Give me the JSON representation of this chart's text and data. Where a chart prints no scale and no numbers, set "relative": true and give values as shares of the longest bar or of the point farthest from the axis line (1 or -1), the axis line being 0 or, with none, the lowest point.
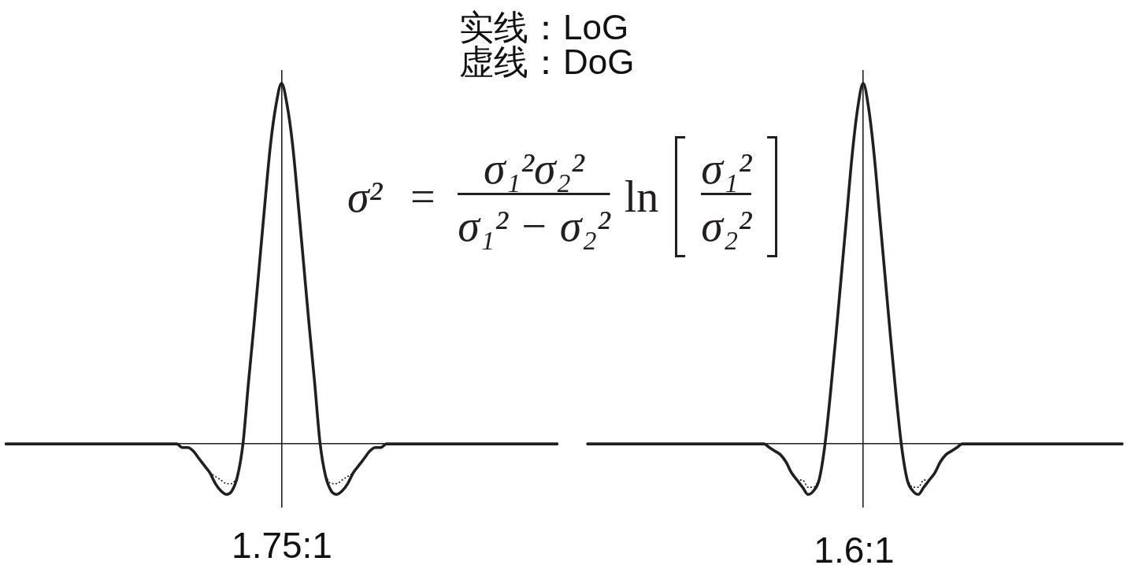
{
  "chart_data": [
    {
      "type": "line",
      "relative": true,
      "xlabel": "1.75:1",
      "annotations": [
        "实线：LoG",
        "虚线：DoG",
        "σ² =",
        "σ₁²σ₂²",
        "σ₁² − σ₂²",
        "ln",
        "σ₁²",
        "σ₂²"
      ],
      "categories": [
        null,
        null,
        null,
        null,
        null,
        null,
        null,
        null,
        null,
        null,
        null,
        null,
        null,
        null,
        null,
        null,
        null,
        null,
        null,
        null,
        null,
        null,
        null,
        null,
        null,
        null,
        null,
        null,
        null,
        null,
        null,
        null,
        null,
        null,
        null,
        null,
        null,
        null,
        null,
        null,
        null,
        null,
        null,
        null,
        null,
        null,
        null,
        null,
        null,
        null,
        null,
        null,
        null,
        null,
        null,
        null,
        null,
        null,
        null,
        null,
        null,
        null,
        null,
        null,
        null,
        null,
        null,
        null,
        null,
        null,
        null,
        null,
        null,
        null,
        null,
        null,
        null,
        null,
        null,
        null,
        null,
        null,
        null,
        null,
        null,
        null,
        null,
        null,
        null,
        null,
        null,
        null,
        null,
        null,
        null,
        null,
        null,
        null,
        null,
        null,
        null
      ],
      "series": [
        {
          "color": "#231f20",
          "line_style": "solid",
          "values": [
            0,
            0,
            0,
            0,
            0,
            0,
            0,
            0,
            0,
            0,
            0,
            0,
            0,
            0,
            0,
            0,
            0,
            0,
            0,
            0,
            0,
            0,
            0,
            0,
            0,
            0,
            0,
            0,
            0,
            0,
            0,
            0,
            -0.01,
            -0.01,
            -0.02,
            -0.04,
            -0.06,
            -0.08,
            -0.11,
            -0.13,
            -0.14,
            -0.13,
            -0.09,
            0,
            0.17,
            0.33,
            0.5,
            0.67,
            0.83,
            0.94,
            1,
            0.94,
            0.83,
            0.67,
            0.5,
            0.33,
            0.17,
            0,
            -0.09,
            -0.13,
            -0.14,
            -0.13,
            -0.11,
            -0.08,
            -0.06,
            -0.04,
            -0.02,
            -0.01,
            -0.01,
            0,
            0,
            0,
            0,
            0,
            0,
            0,
            0,
            0,
            0,
            0,
            0,
            0,
            0,
            0,
            0,
            0,
            0,
            0,
            0,
            0,
            0,
            0,
            0,
            0,
            0,
            0,
            0,
            0,
            0,
            0,
            0
          ]
        },
        {
          "color": "#231f20",
          "line_style": "dotted",
          "values": [
            null,
            null,
            null,
            null,
            null,
            null,
            null,
            null,
            null,
            null,
            null,
            null,
            null,
            null,
            null,
            null,
            null,
            null,
            null,
            null,
            null,
            null,
            null,
            null,
            null,
            null,
            null,
            null,
            null,
            null,
            null,
            null,
            null,
            null,
            null,
            null,
            null,
            -0.08,
            -0.09,
            -0.1,
            -0.11,
            -0.11,
            -0.09,
            null,
            null,
            null,
            null,
            null,
            null,
            null,
            null,
            null,
            null,
            null,
            null,
            null,
            null,
            null,
            -0.09,
            -0.11,
            -0.11,
            -0.1,
            -0.09,
            -0.08,
            null,
            null,
            null,
            null,
            null,
            null,
            null,
            null,
            null,
            null,
            null,
            null,
            null,
            null,
            null,
            null,
            null,
            null,
            null,
            null,
            null,
            null,
            null,
            null,
            null,
            null,
            null,
            null,
            null,
            null,
            null,
            null,
            null,
            null,
            null,
            null,
            null
          ]
        }
      ]
    },
    {
      "type": "line",
      "relative": true,
      "xlabel": "1.6:1",
      "categories": [
        null,
        null,
        null,
        null,
        null,
        null,
        null,
        null,
        null,
        null,
        null,
        null,
        null,
        null,
        null,
        null,
        null,
        null,
        null,
        null,
        null,
        null,
        null,
        null,
        null,
        null,
        null,
        null,
        null,
        null,
        null,
        null,
        null,
        null,
        null,
        null,
        null,
        null,
        null,
        null,
        null,
        null,
        null,
        null,
        null,
        null,
        null,
        null,
        null,
        null,
        null,
        null,
        null,
        null,
        null,
        null,
        null,
        null,
        null,
        null,
        null,
        null,
        null,
        null,
        null,
        null,
        null,
        null,
        null,
        null,
        null,
        null,
        null,
        null,
        null,
        null,
        null,
        null,
        null,
        null,
        null,
        null,
        null,
        null,
        null,
        null,
        null,
        null,
        null,
        null,
        null,
        null,
        null,
        null,
        null,
        null,
        null,
        null
      ],
      "series": [
        {
          "color": "#231f20",
          "line_style": "solid",
          "values": [
            0,
            0,
            0,
            0,
            0,
            0,
            0,
            0,
            0,
            0,
            0,
            0,
            0,
            0,
            0,
            0,
            0,
            0,
            0,
            0,
            0,
            0,
            0,
            0,
            0,
            0,
            0,
            0,
            0,
            0,
            0,
            0,
            0,
            -0.01,
            -0.02,
            -0.03,
            -0.05,
            -0.08,
            -0.1,
            -0.12,
            -0.14,
            -0.13,
            -0.1,
            -0.01,
            0.13,
            0.29,
            0.46,
            0.63,
            0.8,
            0.93,
            1,
            0.93,
            0.8,
            0.63,
            0.46,
            0.29,
            0.13,
            -0.01,
            -0.1,
            -0.13,
            -0.14,
            -0.12,
            -0.1,
            -0.08,
            -0.05,
            -0.03,
            -0.02,
            -0.01,
            0,
            0,
            0,
            0,
            0,
            0,
            0,
            0,
            0,
            0,
            0,
            0,
            0,
            0,
            0,
            0,
            0,
            0,
            0,
            0,
            0,
            0,
            0,
            0,
            0,
            0,
            0,
            0,
            0,
            0
          ]
        },
        {
          "color": "#231f20",
          "line_style": "dotted",
          "values": [
            null,
            null,
            null,
            null,
            null,
            null,
            null,
            null,
            null,
            null,
            null,
            null,
            null,
            null,
            null,
            null,
            null,
            null,
            null,
            null,
            null,
            null,
            null,
            null,
            null,
            null,
            null,
            null,
            null,
            null,
            null,
            null,
            null,
            null,
            null,
            null,
            null,
            null,
            -0.1,
            -0.1,
            -0.12,
            -0.12,
            -0.1,
            null,
            null,
            null,
            null,
            null,
            null,
            null,
            null,
            null,
            null,
            null,
            null,
            null,
            null,
            null,
            -0.1,
            -0.12,
            -0.12,
            -0.1,
            -0.1,
            null,
            null,
            null,
            null,
            null,
            null,
            null,
            null,
            null,
            null,
            null,
            null,
            null,
            null,
            null,
            null,
            null,
            null,
            null,
            null,
            null,
            null,
            null,
            null,
            null,
            null,
            null,
            null,
            null,
            null,
            null,
            null,
            null,
            null,
            null
          ]
        }
      ]
    }
  ]
}
